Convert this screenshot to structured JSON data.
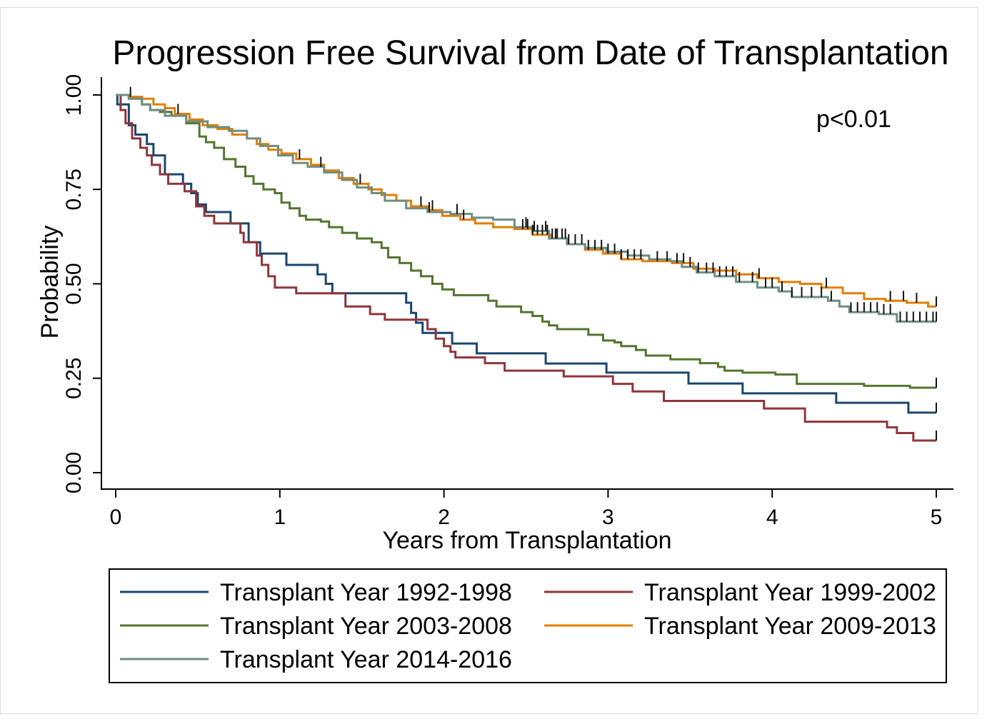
{
  "chart_data": {
    "type": "line",
    "step": true,
    "title": "Progression Free Survival from Date of Transplantation",
    "title_color": "#1c2d5b",
    "xlabel": "Years from Transplantation",
    "ylabel": "Probability",
    "xlim": [
      0,
      5
    ],
    "ylim": [
      0,
      1
    ],
    "x_ticks": [
      0,
      1,
      2,
      3,
      4,
      5
    ],
    "x_tick_labels": [
      "0",
      "1",
      "2",
      "3",
      "4",
      "5"
    ],
    "y_ticks": [
      0,
      0.25,
      0.5,
      0.75,
      1
    ],
    "y_tick_labels": [
      "0.00",
      "0.25",
      "0.50",
      "0.75",
      "1.00"
    ],
    "grid": false,
    "legend_position": "bottom",
    "annotations": [
      {
        "text": "p<0.01",
        "location": "top-right"
      }
    ],
    "series": [
      {
        "name": "Transplant Year 1992-1998",
        "color": "#1a476f",
        "steps": [
          [
            0,
            1.0
          ],
          [
            0.01,
            0.975
          ],
          [
            0.08,
            0.92
          ],
          [
            0.12,
            0.895
          ],
          [
            0.19,
            0.87
          ],
          [
            0.23,
            0.84
          ],
          [
            0.3,
            0.79
          ],
          [
            0.41,
            0.765
          ],
          [
            0.46,
            0.74
          ],
          [
            0.5,
            0.71
          ],
          [
            0.55,
            0.69
          ],
          [
            0.7,
            0.66
          ],
          [
            0.81,
            0.61
          ],
          [
            0.88,
            0.58
          ],
          [
            1.04,
            0.55
          ],
          [
            1.23,
            0.525
          ],
          [
            1.28,
            0.5
          ],
          [
            1.32,
            0.475
          ],
          [
            1.77,
            0.45
          ],
          [
            1.8,
            0.423
          ],
          [
            1.83,
            0.397
          ],
          [
            1.87,
            0.37
          ],
          [
            2.05,
            0.342
          ],
          [
            2.2,
            0.316
          ],
          [
            2.62,
            0.289
          ],
          [
            2.99,
            0.265
          ],
          [
            3.49,
            0.236
          ],
          [
            3.82,
            0.21
          ],
          [
            4.39,
            0.185
          ],
          [
            4.83,
            0.159
          ]
        ],
        "censored": [
          5.0
        ]
      },
      {
        "name": "Transplant Year 1999-2002",
        "color": "#90353b",
        "steps": [
          [
            0,
            1.0
          ],
          [
            0.03,
            0.96
          ],
          [
            0.06,
            0.925
          ],
          [
            0.1,
            0.885
          ],
          [
            0.15,
            0.86
          ],
          [
            0.19,
            0.84
          ],
          [
            0.22,
            0.815
          ],
          [
            0.27,
            0.79
          ],
          [
            0.32,
            0.765
          ],
          [
            0.42,
            0.745
          ],
          [
            0.49,
            0.705
          ],
          [
            0.54,
            0.68
          ],
          [
            0.6,
            0.66
          ],
          [
            0.76,
            0.635
          ],
          [
            0.78,
            0.61
          ],
          [
            0.86,
            0.575
          ],
          [
            0.89,
            0.55
          ],
          [
            0.93,
            0.52
          ],
          [
            0.97,
            0.49
          ],
          [
            1.1,
            0.475
          ],
          [
            1.4,
            0.44
          ],
          [
            1.55,
            0.42
          ],
          [
            1.64,
            0.405
          ],
          [
            1.9,
            0.38
          ],
          [
            1.95,
            0.355
          ],
          [
            2.0,
            0.335
          ],
          [
            2.04,
            0.32
          ],
          [
            2.07,
            0.305
          ],
          [
            2.25,
            0.29
          ],
          [
            2.37,
            0.27
          ],
          [
            2.73,
            0.255
          ],
          [
            3.03,
            0.235
          ],
          [
            3.15,
            0.215
          ],
          [
            3.34,
            0.19
          ],
          [
            3.95,
            0.17
          ],
          [
            4.2,
            0.135
          ],
          [
            4.7,
            0.12
          ],
          [
            4.76,
            0.105
          ],
          [
            4.86,
            0.085
          ]
        ],
        "censored": [
          5.0
        ]
      },
      {
        "name": "Transplant Year 2003-2008",
        "color": "#55752f",
        "steps": [
          [
            0,
            1.0
          ],
          [
            0.08,
            0.99
          ],
          [
            0.16,
            0.975
          ],
          [
            0.21,
            0.96
          ],
          [
            0.27,
            0.955
          ],
          [
            0.34,
            0.945
          ],
          [
            0.43,
            0.925
          ],
          [
            0.51,
            0.89
          ],
          [
            0.55,
            0.875
          ],
          [
            0.6,
            0.86
          ],
          [
            0.66,
            0.83
          ],
          [
            0.73,
            0.81
          ],
          [
            0.79,
            0.785
          ],
          [
            0.84,
            0.765
          ],
          [
            0.9,
            0.75
          ],
          [
            0.97,
            0.74
          ],
          [
            1.01,
            0.715
          ],
          [
            1.06,
            0.7
          ],
          [
            1.12,
            0.68
          ],
          [
            1.16,
            0.67
          ],
          [
            1.25,
            0.665
          ],
          [
            1.3,
            0.65
          ],
          [
            1.38,
            0.635
          ],
          [
            1.47,
            0.62
          ],
          [
            1.56,
            0.61
          ],
          [
            1.62,
            0.595
          ],
          [
            1.66,
            0.57
          ],
          [
            1.73,
            0.555
          ],
          [
            1.8,
            0.535
          ],
          [
            1.86,
            0.52
          ],
          [
            1.93,
            0.5
          ],
          [
            1.99,
            0.485
          ],
          [
            2.06,
            0.47
          ],
          [
            2.27,
            0.455
          ],
          [
            2.32,
            0.44
          ],
          [
            2.47,
            0.425
          ],
          [
            2.54,
            0.415
          ],
          [
            2.6,
            0.4
          ],
          [
            2.64,
            0.39
          ],
          [
            2.69,
            0.38
          ],
          [
            2.88,
            0.365
          ],
          [
            2.97,
            0.35
          ],
          [
            3.04,
            0.345
          ],
          [
            3.08,
            0.335
          ],
          [
            3.17,
            0.325
          ],
          [
            3.23,
            0.31
          ],
          [
            3.38,
            0.3
          ],
          [
            3.56,
            0.29
          ],
          [
            3.67,
            0.28
          ],
          [
            3.71,
            0.27
          ],
          [
            3.82,
            0.265
          ],
          [
            4.02,
            0.26
          ],
          [
            4.15,
            0.235
          ],
          [
            4.56,
            0.23
          ],
          [
            4.84,
            0.225
          ]
        ],
        "censored": [
          5.0
        ]
      },
      {
        "name": "Transplant Year 2009-2013",
        "color": "#e37e00",
        "steps": [
          [
            0,
            1.0
          ],
          [
            0.08,
            0.995
          ],
          [
            0.16,
            0.99
          ],
          [
            0.23,
            0.975
          ],
          [
            0.3,
            0.965
          ],
          [
            0.36,
            0.95
          ],
          [
            0.45,
            0.935
          ],
          [
            0.53,
            0.92
          ],
          [
            0.62,
            0.91
          ],
          [
            0.71,
            0.895
          ],
          [
            0.8,
            0.885
          ],
          [
            0.86,
            0.87
          ],
          [
            0.93,
            0.855
          ],
          [
            1.01,
            0.845
          ],
          [
            1.1,
            0.83
          ],
          [
            1.19,
            0.815
          ],
          [
            1.27,
            0.8
          ],
          [
            1.36,
            0.78
          ],
          [
            1.45,
            0.765
          ],
          [
            1.54,
            0.75
          ],
          [
            1.62,
            0.735
          ],
          [
            1.71,
            0.72
          ],
          [
            1.8,
            0.705
          ],
          [
            1.91,
            0.695
          ],
          [
            1.99,
            0.68
          ],
          [
            2.1,
            0.67
          ],
          [
            2.19,
            0.66
          ],
          [
            2.3,
            0.65
          ],
          [
            2.43,
            0.645
          ],
          [
            2.54,
            0.63
          ],
          [
            2.65,
            0.62
          ],
          [
            2.75,
            0.605
          ],
          [
            2.86,
            0.59
          ],
          [
            2.97,
            0.58
          ],
          [
            3.08,
            0.565
          ],
          [
            3.21,
            0.56
          ],
          [
            3.39,
            0.555
          ],
          [
            3.52,
            0.54
          ],
          [
            3.65,
            0.535
          ],
          [
            3.78,
            0.525
          ],
          [
            3.91,
            0.515
          ],
          [
            4.04,
            0.505
          ],
          [
            4.17,
            0.5
          ],
          [
            4.3,
            0.49
          ],
          [
            4.43,
            0.475
          ],
          [
            4.56,
            0.46
          ],
          [
            4.69,
            0.455
          ],
          [
            4.82,
            0.45
          ],
          [
            4.95,
            0.44
          ]
        ],
        "censored": [
          0.09,
          0.38,
          1.12,
          1.49,
          1.86,
          1.93,
          2.12,
          2.48,
          2.51,
          2.54,
          2.57,
          2.6,
          2.63,
          2.66,
          2.69,
          2.72,
          2.76,
          2.8,
          2.84,
          2.88,
          2.92,
          2.96,
          3.0,
          3.04,
          3.08,
          3.12,
          3.16,
          3.2,
          3.3,
          3.36,
          3.42,
          3.46,
          3.92,
          4.33,
          4.72,
          4.8,
          4.88,
          5.0
        ]
      },
      {
        "name": "Transplant Year 2014-2016",
        "color": "#6e8e84",
        "steps": [
          [
            0,
            1.0
          ],
          [
            0.08,
            0.99
          ],
          [
            0.16,
            0.975
          ],
          [
            0.21,
            0.96
          ],
          [
            0.3,
            0.945
          ],
          [
            0.43,
            0.93
          ],
          [
            0.56,
            0.915
          ],
          [
            0.69,
            0.905
          ],
          [
            0.8,
            0.885
          ],
          [
            0.88,
            0.865
          ],
          [
            0.99,
            0.84
          ],
          [
            1.08,
            0.82
          ],
          [
            1.17,
            0.81
          ],
          [
            1.27,
            0.795
          ],
          [
            1.38,
            0.775
          ],
          [
            1.47,
            0.755
          ],
          [
            1.56,
            0.74
          ],
          [
            1.64,
            0.72
          ],
          [
            1.77,
            0.7
          ],
          [
            1.9,
            0.69
          ],
          [
            2.04,
            0.685
          ],
          [
            2.17,
            0.675
          ],
          [
            2.3,
            0.67
          ],
          [
            2.43,
            0.65
          ],
          [
            2.54,
            0.64
          ],
          [
            2.64,
            0.62
          ],
          [
            2.75,
            0.605
          ],
          [
            2.86,
            0.595
          ],
          [
            2.99,
            0.585
          ],
          [
            3.12,
            0.575
          ],
          [
            3.25,
            0.565
          ],
          [
            3.38,
            0.56
          ],
          [
            3.45,
            0.545
          ],
          [
            3.54,
            0.53
          ],
          [
            3.65,
            0.52
          ],
          [
            3.78,
            0.505
          ],
          [
            3.91,
            0.49
          ],
          [
            4.04,
            0.48
          ],
          [
            4.12,
            0.465
          ],
          [
            4.34,
            0.455
          ],
          [
            4.41,
            0.44
          ],
          [
            4.47,
            0.425
          ],
          [
            4.65,
            0.42
          ],
          [
            4.76,
            0.4
          ]
        ],
        "censored": [
          1.25,
          1.91,
          2.08,
          2.5,
          2.55,
          2.62,
          2.68,
          2.74,
          3.5,
          3.55,
          3.6,
          3.64,
          3.68,
          3.72,
          3.76,
          3.8,
          3.88,
          3.96,
          4.0,
          4.06,
          4.12,
          4.18,
          4.24,
          4.3,
          4.36,
          4.48,
          4.52,
          4.56,
          4.6,
          4.64,
          4.68,
          4.72,
          4.78,
          4.82,
          4.86,
          4.9,
          4.94,
          4.98,
          5.0
        ]
      }
    ]
  }
}
